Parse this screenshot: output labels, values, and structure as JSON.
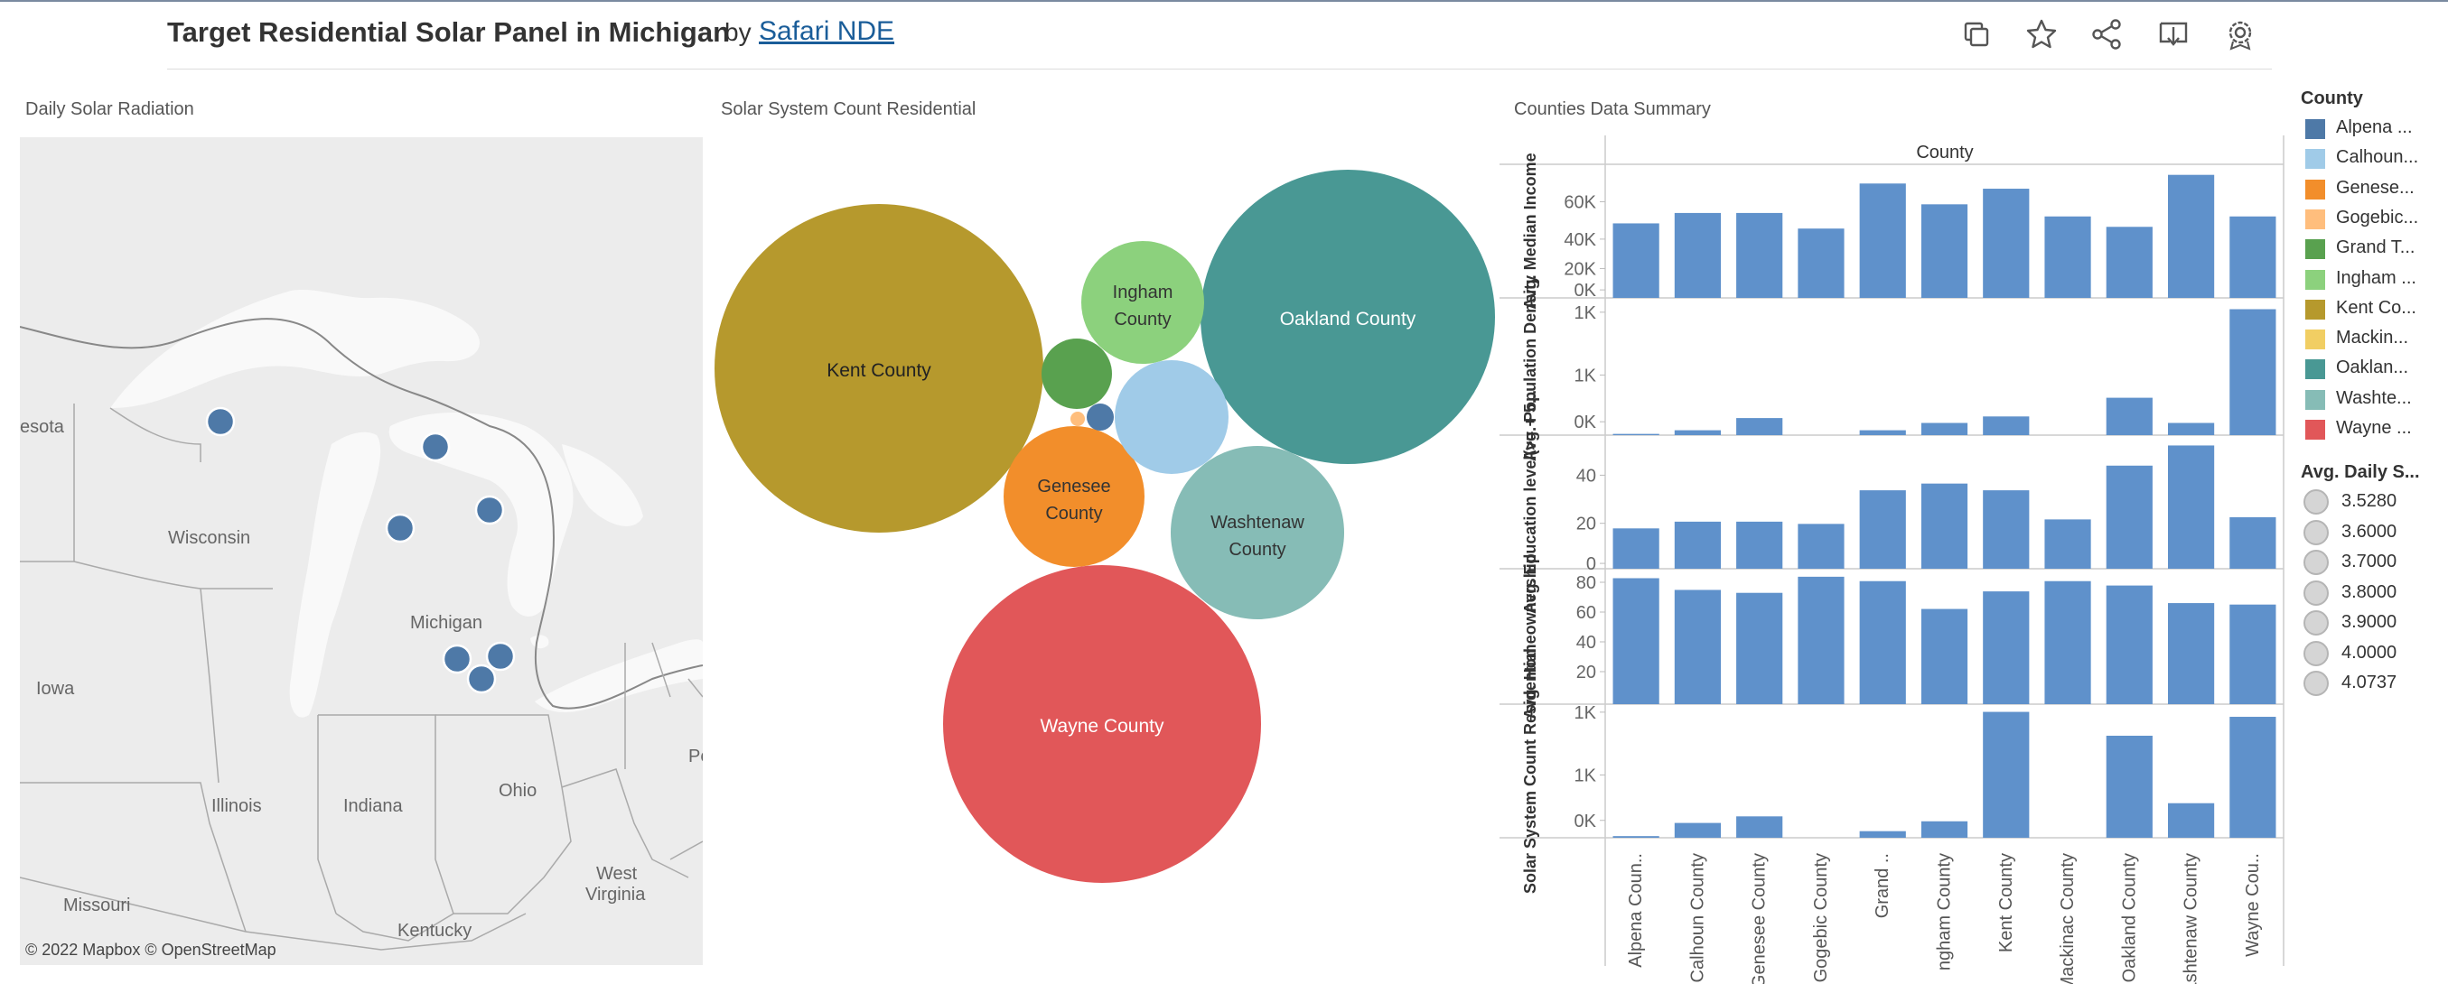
{
  "header": {
    "title": "Target Residential Solar Panel in Michigan",
    "by": "by",
    "author": "Safari NDE",
    "icons": [
      "copy-icon",
      "star-icon",
      "share-icon",
      "download-icon",
      "settings-icon"
    ]
  },
  "map": {
    "title": "Daily Solar Radiation",
    "labels": {
      "minnesota": "esota",
      "wisconsin": "Wisconsin",
      "michigan": "Michigan",
      "iowa": "Iowa",
      "illinois": "Illinois",
      "indiana": "Indiana",
      "ohio": "Ohio",
      "pe": "Pe",
      "west_virginia_1": "West",
      "west_virginia_2": "Virginia",
      "missouri": "Missouri",
      "kentucky": "Kentucky"
    },
    "credit": "© 2022 Mapbox  © OpenStreetMap",
    "dot_color": "#4e79a7"
  },
  "bubbles": {
    "title": "Solar System Count Residential",
    "items": [
      {
        "county": "Kent County",
        "line1": "Kent County",
        "line2": "",
        "color": "#b6992d"
      },
      {
        "county": "Oakland County",
        "line1": "Oakland County",
        "line2": "",
        "color": "#499894"
      },
      {
        "county": "Wayne County",
        "line1": "Wayne County",
        "line2": "",
        "color": "#e15759"
      },
      {
        "county": "Ingham County",
        "line1": "Ingham",
        "line2": "County",
        "color": "#8cd17d"
      },
      {
        "county": "Genesee County",
        "line1": "Genesee",
        "line2": "County",
        "color": "#f28e2b"
      },
      {
        "county": "Washtenaw County",
        "line1": "Washtenaw",
        "line2": "County",
        "color": "#86bcb6"
      },
      {
        "county": "Calhoun County",
        "line1": "",
        "line2": "",
        "color": "#a0cbe8"
      },
      {
        "county": "Grand Traverse County",
        "line1": "",
        "line2": "",
        "color": "#59a14f"
      },
      {
        "county": "Alpena County",
        "line1": "",
        "line2": "",
        "color": "#4e79a7"
      },
      {
        "county": "Gogebic County",
        "line1": "",
        "line2": "",
        "color": "#ffbe7d"
      }
    ]
  },
  "summary": {
    "title": "Counties Data Summary",
    "col_header": "County",
    "bar_color": "#5f91cb",
    "categories": [
      "Alpena Coun..",
      "Calhoun County",
      "Genesee County",
      "Gogebic County",
      "Grand ..",
      "ngham County",
      "Kent County",
      "Mackinac County",
      "Oakland County",
      "Washtenaw County",
      "Wayne Cou.."
    ],
    "panels": [
      {
        "label": "Avg. Median Income",
        "ticks": [
          "60K",
          "40K",
          "20K",
          "0K"
        ]
      },
      {
        "label": "Avg. Population Density",
        "ticks": [
          "1K",
          "1K",
          "0K"
        ]
      },
      {
        "label": "Avg. Education level(>= + 5...",
        "ticks": [
          "40",
          "20",
          "0"
        ]
      },
      {
        "label": "Avg. Homeownership",
        "ticks": [
          "80",
          "60",
          "40",
          "20"
        ]
      },
      {
        "label": "Solar System Count Residential",
        "ticks": [
          "1K",
          "1K",
          "0K"
        ]
      }
    ]
  },
  "chart_data": {
    "type": "bar",
    "title": "Counties Data Summary",
    "xlabel": "County",
    "categories": [
      "Alpena County",
      "Calhoun County",
      "Genesee County",
      "Gogebic County",
      "Grand Traverse County",
      "Ingham County",
      "Kent County",
      "Mackinac County",
      "Oakland County",
      "Washtenaw County",
      "Wayne County"
    ],
    "series": [
      {
        "name": "Avg. Median Income",
        "values": [
          43000,
          49000,
          49000,
          40000,
          66000,
          54000,
          63000,
          47000,
          41000,
          71000,
          47000
        ],
        "ylim": [
          0,
          75000
        ]
      },
      {
        "name": "Avg. Population Density",
        "values": [
          15,
          60,
          210,
          0,
          60,
          150,
          230,
          0,
          460,
          150,
          1550
        ],
        "ylim": [
          0,
          1600
        ]
      },
      {
        "name": "Avg. Education level(>= + 5...",
        "values": [
          18,
          21,
          21,
          20,
          35,
          38,
          35,
          22,
          46,
          55,
          23
        ],
        "ylim": [
          0,
          58
        ]
      },
      {
        "name": "Avg. Homeownership",
        "values": [
          86,
          78,
          76,
          87,
          84,
          65,
          77,
          84,
          81,
          69,
          68
        ],
        "ylim": [
          0,
          90
        ]
      },
      {
        "name": "Solar System Count Residential",
        "values": [
          20,
          180,
          260,
          0,
          80,
          200,
          1530,
          0,
          1240,
          420,
          1470
        ],
        "ylim": [
          0,
          1580
        ]
      }
    ]
  },
  "legend": {
    "title": "County",
    "items": [
      {
        "label": "Alpena ...",
        "color": "#4e79a7"
      },
      {
        "label": "Calhoun...",
        "color": "#a0cbe8"
      },
      {
        "label": "Genese...",
        "color": "#f28e2b"
      },
      {
        "label": "Gogebic...",
        "color": "#ffbe7d"
      },
      {
        "label": "Grand T...",
        "color": "#59a14f"
      },
      {
        "label": "Ingham ...",
        "color": "#8cd17d"
      },
      {
        "label": "Kent Co...",
        "color": "#b6992d"
      },
      {
        "label": "Mackin...",
        "color": "#f1ce63"
      },
      {
        "label": "Oaklan...",
        "color": "#499894"
      },
      {
        "label": "Washte...",
        "color": "#86bcb6"
      },
      {
        "label": "Wayne ...",
        "color": "#e15759"
      }
    ],
    "size_title": "Avg. Daily S...",
    "size_items": [
      "3.5280",
      "3.6000",
      "3.7000",
      "3.8000",
      "3.9000",
      "4.0000",
      "4.0737"
    ]
  }
}
